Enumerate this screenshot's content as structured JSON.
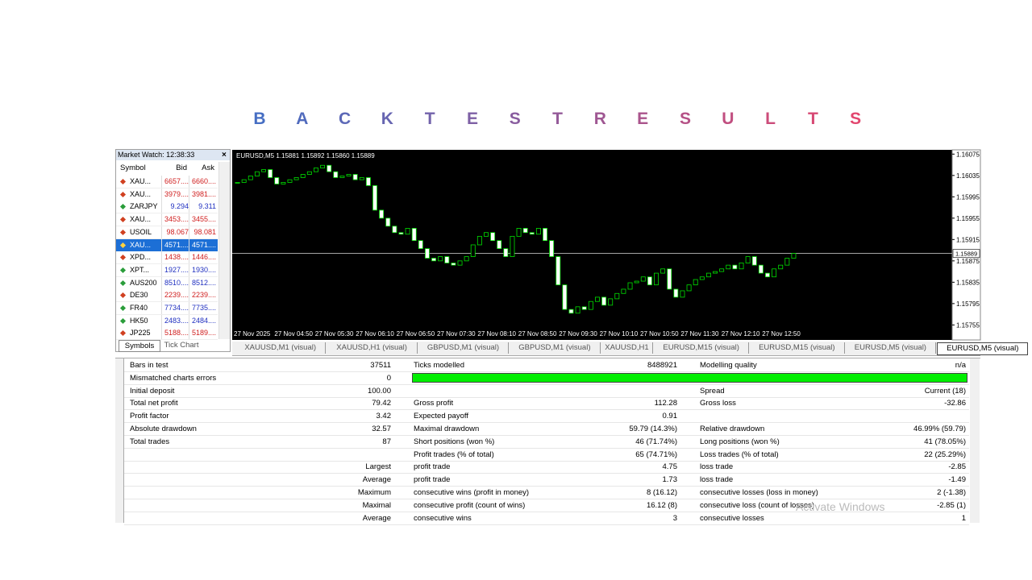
{
  "title": [
    "B",
    "A",
    "C",
    "K",
    "T",
    "E",
    "S",
    "T",
    "R",
    "E",
    "S",
    "U",
    "L",
    "T",
    "S"
  ],
  "market_watch": {
    "header": "Market Watch: 12:38:33",
    "columns": [
      "Symbol",
      "Bid",
      "Ask"
    ],
    "rows": [
      {
        "symbol": "XAU...",
        "bid": "6657....",
        "ask": "6660....",
        "color": "#d02020"
      },
      {
        "symbol": "XAU...",
        "bid": "3979....",
        "ask": "3981....",
        "color": "#d02020"
      },
      {
        "symbol": "ZARJPY",
        "bid": "9.294",
        "ask": "9.311",
        "color": "#2030c0"
      },
      {
        "symbol": "XAU...",
        "bid": "3453....",
        "ask": "3455....",
        "color": "#d02020"
      },
      {
        "symbol": "USOIL",
        "bid": "98.067",
        "ask": "98.081",
        "color": "#d02020"
      },
      {
        "symbol": "XAU...",
        "bid": "4571....",
        "ask": "4571....",
        "color": "#ffffff",
        "selected": true
      },
      {
        "symbol": "XPD...",
        "bid": "1438....",
        "ask": "1446....",
        "color": "#d02020"
      },
      {
        "symbol": "XPT...",
        "bid": "1927....",
        "ask": "1930....",
        "color": "#2030c0"
      },
      {
        "symbol": "AUS200",
        "bid": "8510....",
        "ask": "8512....",
        "color": "#2030c0"
      },
      {
        "symbol": "DE30",
        "bid": "2239....",
        "ask": "2239....",
        "color": "#d02020"
      },
      {
        "symbol": "FR40",
        "bid": "7734....",
        "ask": "7735....",
        "color": "#2030c0"
      },
      {
        "symbol": "HK50",
        "bid": "2483....",
        "ask": "2484....",
        "color": "#2030c0"
      },
      {
        "symbol": "JP225",
        "bid": "5188....",
        "ask": "5189....",
        "color": "#d02020"
      }
    ],
    "tabs": [
      "Symbols",
      "Tick Chart"
    ]
  },
  "chart": {
    "info": "EURUSD,M5  1.15881 1.15892 1.15860 1.15889",
    "ylim": [
      1.15745,
      1.16083
    ],
    "yticks": [
      1.16075,
      1.16035,
      1.15995,
      1.15955,
      1.15915,
      1.15875,
      1.15835,
      1.15795,
      1.15755
    ],
    "current": 1.15889,
    "xlabels": [
      "27 Nov 2025",
      "27 Nov 04:50",
      "27 Nov 05:30",
      "27 Nov 06:10",
      "27 Nov 06:50",
      "27 Nov 07:30",
      "27 Nov 08:10",
      "27 Nov 08:50",
      "27 Nov 09:30",
      "27 Nov 10:10",
      "27 Nov 10:50",
      "27 Nov 11:30",
      "27 Nov 12:10",
      "27 Nov 12:50"
    ],
    "closes": [
      1.16022,
      1.16027,
      1.16034,
      1.16042,
      1.16046,
      1.16031,
      1.16019,
      1.16022,
      1.16027,
      1.16031,
      1.16037,
      1.16042,
      1.16049,
      1.16054,
      1.16042,
      1.16031,
      1.16034,
      1.16037,
      1.16027,
      1.16031,
      1.16016,
      1.1597,
      1.15955,
      1.1594,
      1.15928,
      1.15925,
      1.15936,
      1.15913,
      1.15898,
      1.1588,
      1.15875,
      1.15883,
      1.15871,
      1.15867,
      1.15875,
      1.15883,
      1.15905,
      1.15921,
      1.15928,
      1.15913,
      1.15898,
      1.15883,
      1.15921,
      1.15936,
      1.15928,
      1.15925,
      1.15936,
      1.15913,
      1.15883,
      1.1583,
      1.15784,
      1.15777,
      1.15789,
      1.15784,
      1.15799,
      1.15807,
      1.15792,
      1.15804,
      1.15814,
      1.15822,
      1.15834,
      1.15837,
      1.15845,
      1.1583,
      1.15852,
      1.1586,
      1.15822,
      1.15807,
      1.15819,
      1.1583,
      1.1584,
      1.15845,
      1.15852,
      1.15855,
      1.1586,
      1.15867,
      1.1586,
      1.15871,
      1.15883,
      1.15867,
      1.15852,
      1.15845,
      1.1586,
      1.15867,
      1.1588,
      1.15889
    ]
  },
  "chart_tabs": [
    "XAUUSD,M1 (visual)",
    "XAUUSD,H1 (visual)",
    "GBPUSD,M1 (visual)",
    "GBPUSD,M1 (visual)",
    "XAUUSD,H1",
    "EURUSD,M15 (visual)",
    "EURUSD,M15 (visual)",
    "EURUSD,M5 (visual)",
    "EURUSD,M5 (visual)"
  ],
  "results": {
    "rows": [
      [
        "Bars in test",
        "37511",
        "Ticks modelled",
        "8488921",
        "Modelling quality",
        "n/a"
      ],
      [
        "Mismatched charts errors",
        "0",
        null,
        null,
        null,
        null
      ],
      [
        "Initial deposit",
        "100.00",
        null,
        null,
        "Spread",
        "Current (18)"
      ],
      [
        "Total net profit",
        "79.42",
        "Gross profit",
        "112.28",
        "Gross loss",
        "-32.86"
      ],
      [
        "Profit factor",
        "3.42",
        "Expected payoff",
        "0.91",
        null,
        null
      ],
      [
        "Absolute drawdown",
        "32.57",
        "Maximal drawdown",
        "59.79  (14.3%)",
        "Relative drawdown",
        "46.99% (59.79)"
      ],
      [
        "Total trades",
        "87",
        "Short positions (won %)",
        "46 (71.74%)",
        "Long positions (won %)",
        "41 (78.05%)"
      ],
      [
        null,
        null,
        "Profit trades (% of total)",
        "65 (74.71%)",
        "Loss trades (% of total)",
        "22 (25.29%)"
      ],
      [
        null,
        "Largest",
        "profit trade",
        "4.75",
        "loss trade",
        "-2.85"
      ],
      [
        null,
        "Average",
        "profit trade",
        "1.73",
        "loss trade",
        "-1.49"
      ],
      [
        null,
        "Maximum",
        "consecutive wins (profit in money)",
        "8 (16.12)",
        "consecutive losses (loss in money)",
        "2 (-1.38)"
      ],
      [
        null,
        "Maximal",
        "consecutive profit (count of wins)",
        "16.12 (8)",
        "consecutive loss (count of losses)",
        "-2.85 (1)"
      ],
      [
        null,
        "Average",
        "consecutive wins",
        "3",
        "consecutive losses",
        "1"
      ]
    ],
    "watermark": "Activate Windows"
  }
}
